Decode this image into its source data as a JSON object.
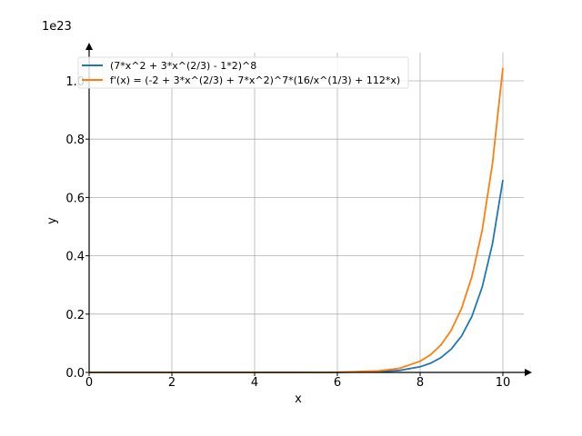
{
  "chart_data": {
    "type": "line",
    "title": "",
    "xlabel": "x",
    "ylabel": "y",
    "y_offset_text": "1e23",
    "xlim": [
      0,
      10.5
    ],
    "ylim": [
      0,
      1.1
    ],
    "grid": true,
    "legend_placement": "top-left",
    "x_ticks": [
      0,
      2,
      4,
      6,
      8,
      10
    ],
    "x_tick_labels": [
      "0",
      "2",
      "4",
      "6",
      "8",
      "10"
    ],
    "y_ticks": [
      0,
      0.2,
      0.4,
      0.6,
      0.8,
      1.0
    ],
    "y_tick_labels": [
      "0.0",
      "0.2",
      "0.4",
      "0.6",
      "0.8",
      "1.0"
    ],
    "x": [
      0,
      1,
      2,
      3,
      4,
      5,
      6,
      7,
      7.5,
      8,
      8.25,
      8.5,
      8.75,
      9,
      9.25,
      9.5,
      9.75,
      10
    ],
    "series": [
      {
        "name": "(7*x^2 + 3*x^(2/3) - 1*2)^8",
        "color": "#1f77b4",
        "values": [
          0,
          0,
          0,
          0,
          0,
          1e-05,
          0.0002,
          0.0024,
          0.0067,
          0.0194,
          0.0315,
          0.0505,
          0.0798,
          0.1245,
          0.192,
          0.293,
          0.442,
          0.66
        ]
      },
      {
        "name": "f'(x) = (-2 + 3*x^(2/3) + 7*x^2)^7*(16/x^(1/3) + 112*x)",
        "color": "#ff7f0e",
        "values": [
          0,
          0,
          0,
          0,
          0,
          4e-05,
          0.0005,
          0.0053,
          0.0141,
          0.0383,
          0.0603,
          0.0939,
          0.144,
          0.219,
          0.328,
          0.488,
          0.718,
          1.045
        ]
      }
    ]
  }
}
